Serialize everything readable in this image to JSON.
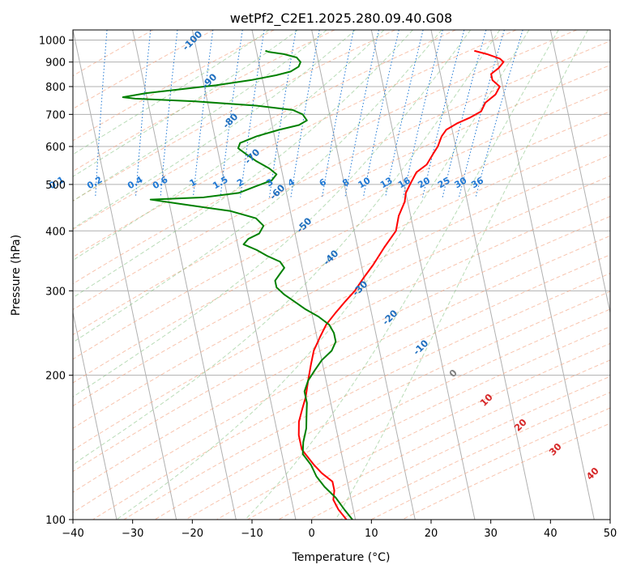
{
  "chart_data": {
    "type": "line",
    "subtype": "skew-t log-p",
    "title": "wetPf2_C2E1.2025.280.09.40.G08",
    "xlabel": "Temperature (°C)",
    "ylabel": "Pressure (hPa)",
    "xlim": [
      -40,
      50
    ],
    "ylim_hPa": [
      1050,
      100
    ],
    "log_pressure": true,
    "grid": true,
    "x_ticks": [
      "−40",
      "−30",
      "−20",
      "−10",
      "0",
      "10",
      "20",
      "30",
      "40",
      "50"
    ],
    "y_ticks": [
      "100",
      "200",
      "300",
      "400",
      "500",
      "600",
      "700",
      "800",
      "900",
      "1000"
    ],
    "series": [
      {
        "name": "",
        "color": "#ff0000",
        "points": [
          [
            26.5,
            950
          ],
          [
            28.5,
            935
          ],
          [
            30.5,
            915
          ],
          [
            31,
            900
          ],
          [
            30,
            875
          ],
          [
            28.5,
            850
          ],
          [
            28.5,
            825
          ],
          [
            29.5,
            800
          ],
          [
            28.5,
            770
          ],
          [
            26.5,
            740
          ],
          [
            25.5,
            710
          ],
          [
            23.5,
            690
          ],
          [
            21,
            670
          ],
          [
            19,
            650
          ],
          [
            18,
            630
          ],
          [
            17,
            600
          ],
          [
            16,
            580
          ],
          [
            14.5,
            550
          ],
          [
            12.5,
            530
          ],
          [
            11,
            500
          ],
          [
            10,
            480
          ],
          [
            9.5,
            460
          ],
          [
            8,
            430
          ],
          [
            7,
            400
          ],
          [
            4.5,
            370
          ],
          [
            2,
            340
          ],
          [
            0,
            320
          ],
          [
            -2,
            300
          ],
          [
            -4,
            285
          ],
          [
            -6,
            270
          ],
          [
            -8,
            255
          ],
          [
            -9.5,
            240
          ],
          [
            -11,
            225
          ],
          [
            -12,
            210
          ],
          [
            -13,
            195
          ],
          [
            -14,
            180
          ],
          [
            -15,
            170
          ],
          [
            -16,
            160
          ],
          [
            -16.5,
            150
          ],
          [
            -16.5,
            140
          ],
          [
            -15,
            130
          ],
          [
            -14,
            125
          ],
          [
            -12.5,
            120
          ],
          [
            -12.5,
            115
          ],
          [
            -13,
            110
          ],
          [
            -12.5,
            105
          ],
          [
            -11.5,
            100
          ]
        ]
      },
      {
        "name": "",
        "color": "#008000",
        "points": [
          [
            -8.5,
            950
          ],
          [
            -8,
            945
          ],
          [
            -5.5,
            935
          ],
          [
            -3.5,
            920
          ],
          [
            -3,
            900
          ],
          [
            -3.5,
            880
          ],
          [
            -5,
            860
          ],
          [
            -7.5,
            845
          ],
          [
            -12,
            825
          ],
          [
            -18,
            805
          ],
          [
            -24,
            790
          ],
          [
            -30,
            775
          ],
          [
            -34,
            760
          ],
          [
            -32,
            755
          ],
          [
            -22,
            745
          ],
          [
            -12,
            730
          ],
          [
            -6,
            715
          ],
          [
            -4.5,
            700
          ],
          [
            -4,
            680
          ],
          [
            -5.5,
            665
          ],
          [
            -9,
            650
          ],
          [
            -13,
            630
          ],
          [
            -16,
            610
          ],
          [
            -16.5,
            595
          ],
          [
            -15.5,
            580
          ],
          [
            -14,
            560
          ],
          [
            -12,
            540
          ],
          [
            -11,
            525
          ],
          [
            -12,
            510
          ],
          [
            -15,
            495
          ],
          [
            -18,
            480
          ],
          [
            -24,
            470
          ],
          [
            -33,
            465
          ],
          [
            -28,
            455
          ],
          [
            -20,
            440
          ],
          [
            -16,
            425
          ],
          [
            -15,
            410
          ],
          [
            -16,
            395
          ],
          [
            -18,
            385
          ],
          [
            -19,
            375
          ],
          [
            -17,
            365
          ],
          [
            -15.5,
            355
          ],
          [
            -13.5,
            345
          ],
          [
            -13,
            335
          ],
          [
            -14,
            325
          ],
          [
            -15,
            315
          ],
          [
            -15,
            305
          ],
          [
            -14,
            295
          ],
          [
            -12.5,
            285
          ],
          [
            -11,
            275
          ],
          [
            -9,
            265
          ],
          [
            -7.5,
            255
          ],
          [
            -7,
            245
          ],
          [
            -7,
            235
          ],
          [
            -8,
            225
          ],
          [
            -10,
            215
          ],
          [
            -11.5,
            205
          ],
          [
            -13,
            195
          ],
          [
            -14,
            185
          ],
          [
            -14,
            175
          ],
          [
            -14.5,
            165
          ],
          [
            -15,
            155
          ],
          [
            -16,
            145
          ],
          [
            -16.5,
            137
          ],
          [
            -15.5,
            130
          ],
          [
            -15,
            123
          ],
          [
            -14,
            117
          ],
          [
            -12.5,
            111
          ],
          [
            -11.5,
            105
          ],
          [
            -10.5,
            100
          ]
        ]
      }
    ],
    "mixing_ratio_labels": [
      "0.1",
      "0.2",
      "0.4",
      "0.6",
      "1",
      "1.5",
      "2",
      "3",
      "4",
      "6",
      "8",
      "10",
      "13",
      "16",
      "20",
      "25",
      "30",
      "36"
    ],
    "mixing_ratio_values": [
      0.1,
      0.2,
      0.4,
      0.6,
      1,
      1.5,
      2,
      3,
      4,
      6,
      8,
      10,
      13,
      16,
      20,
      25,
      30,
      36
    ],
    "dry_adiabat_labels": [
      "-100",
      "-90",
      "-80",
      "-70",
      "-60",
      "-50",
      "-40",
      "-30",
      "-20",
      "-10",
      "0",
      "10",
      "20",
      "30",
      "40"
    ],
    "dry_adiabat_values": [
      -100,
      -90,
      -80,
      -70,
      -60,
      -50,
      -40,
      -30,
      -20,
      -10,
      0,
      10,
      20,
      30,
      40
    ],
    "colors": {
      "temperature": "#ff0000",
      "dewpoint": "#008000",
      "dry_adiabat": "#f4a582",
      "moist_adiabat": "#7fbf7b",
      "mixing_ratio": "#1f78d4",
      "isotherm": "#808080",
      "grid": "#b0b0b0",
      "label_blue": "#1f6fbf",
      "label_red": "#d62728",
      "label_gray": "#808080"
    }
  }
}
